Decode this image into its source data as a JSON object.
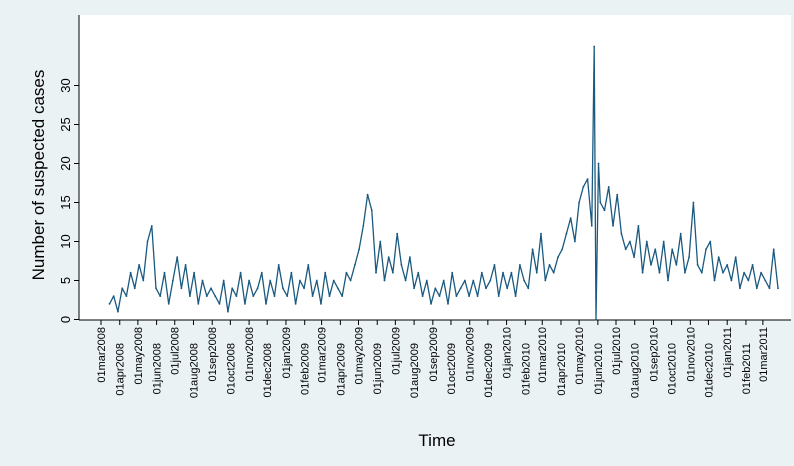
{
  "chart_data": {
    "type": "line",
    "title": "",
    "xlabel": "Time",
    "ylabel": "Number of suspected cases",
    "ylim": [
      0,
      35
    ],
    "xlim": [
      "2008-03-01",
      "2011-03-31"
    ],
    "yticks": [
      0,
      5,
      10,
      15,
      20,
      25,
      30
    ],
    "xtick_labels": [
      "01mar2008",
      "01apr2008",
      "01may2008",
      "01jun2008",
      "01jul2008",
      "01aug2008",
      "01sep2008",
      "01oct2008",
      "01nov2008",
      "01dec2008",
      "01jan2009",
      "01feb2009",
      "01mar2009",
      "01apr2009",
      "01may2009",
      "01jun2009",
      "01jul2009",
      "01aug2009",
      "01sep2009",
      "01oct2009",
      "01nov2009",
      "01dec2009",
      "01jan2010",
      "01feb2010",
      "01mar2010",
      "01apr2010",
      "01may2010",
      "01jun2010",
      "01jul2010",
      "01aug2010",
      "01sep2010",
      "01oct2010",
      "01nov2010",
      "01dec2010",
      "01jan2011",
      "01feb2011",
      "01mar2011"
    ],
    "grid": false,
    "line_color": "#1a5a80",
    "plot_background": "#ffffff",
    "outer_background": "#eaf2f3",
    "series": [
      {
        "x": [
          "2008-03-15",
          "2008-03-22",
          "2008-03-29",
          "2008-04-05",
          "2008-04-12",
          "2008-04-19",
          "2008-04-26",
          "2008-05-03",
          "2008-05-10",
          "2008-05-17",
          "2008-05-24",
          "2008-05-31",
          "2008-06-07",
          "2008-06-14",
          "2008-06-21",
          "2008-06-28",
          "2008-07-05",
          "2008-07-12",
          "2008-07-19",
          "2008-07-26",
          "2008-08-02",
          "2008-08-09",
          "2008-08-16",
          "2008-08-23",
          "2008-08-30",
          "2008-09-06",
          "2008-09-13",
          "2008-09-20",
          "2008-09-27",
          "2008-10-04",
          "2008-10-11",
          "2008-10-18",
          "2008-10-25",
          "2008-11-01",
          "2008-11-08",
          "2008-11-15",
          "2008-11-22",
          "2008-11-29",
          "2008-12-06",
          "2008-12-13",
          "2008-12-20",
          "2008-12-27",
          "2009-01-03",
          "2009-01-10",
          "2009-01-17",
          "2009-01-24",
          "2009-01-31",
          "2009-02-07",
          "2009-02-14",
          "2009-02-21",
          "2009-02-28",
          "2009-03-07",
          "2009-03-14",
          "2009-03-21",
          "2009-03-28",
          "2009-04-04",
          "2009-04-11",
          "2009-04-18",
          "2009-04-25",
          "2009-05-02",
          "2009-05-09",
          "2009-05-16",
          "2009-05-23",
          "2009-05-30",
          "2009-06-06",
          "2009-06-13",
          "2009-06-20",
          "2009-06-27",
          "2009-07-04",
          "2009-07-11",
          "2009-07-18",
          "2009-07-25",
          "2009-08-01",
          "2009-08-08",
          "2009-08-15",
          "2009-08-22",
          "2009-08-29",
          "2009-09-05",
          "2009-09-12",
          "2009-09-19",
          "2009-09-26",
          "2009-10-03",
          "2009-10-10",
          "2009-10-17",
          "2009-10-24",
          "2009-10-31",
          "2009-11-07",
          "2009-11-14",
          "2009-11-21",
          "2009-11-28",
          "2009-12-05",
          "2009-12-12",
          "2009-12-19",
          "2009-12-26",
          "2010-01-02",
          "2010-01-09",
          "2010-01-16",
          "2010-01-23",
          "2010-01-30",
          "2010-02-06",
          "2010-02-13",
          "2010-02-20",
          "2010-02-27",
          "2010-03-06",
          "2010-03-13",
          "2010-03-20",
          "2010-03-27",
          "2010-04-03",
          "2010-04-10",
          "2010-04-17",
          "2010-04-24",
          "2010-05-01",
          "2010-05-08",
          "2010-05-15",
          "2010-05-22",
          "2010-05-26",
          "2010-05-29",
          "2010-06-02",
          "2010-06-05",
          "2010-06-12",
          "2010-06-19",
          "2010-06-26",
          "2010-07-03",
          "2010-07-10",
          "2010-07-17",
          "2010-07-24",
          "2010-07-31",
          "2010-08-07",
          "2010-08-14",
          "2010-08-21",
          "2010-08-28",
          "2010-09-04",
          "2010-09-11",
          "2010-09-18",
          "2010-09-25",
          "2010-10-02",
          "2010-10-09",
          "2010-10-16",
          "2010-10-23",
          "2010-10-30",
          "2010-11-06",
          "2010-11-13",
          "2010-11-20",
          "2010-11-27",
          "2010-12-04",
          "2010-12-11",
          "2010-12-18",
          "2010-12-25",
          "2011-01-01",
          "2011-01-08",
          "2011-01-15",
          "2011-01-22",
          "2011-01-29",
          "2011-02-05",
          "2011-02-12",
          "2011-02-19",
          "2011-02-26",
          "2011-03-05",
          "2011-03-12",
          "2011-03-19",
          "2011-03-26"
        ],
        "y": [
          2,
          3,
          1,
          4,
          3,
          6,
          4,
          7,
          5,
          10,
          12,
          4,
          3,
          6,
          2,
          5,
          8,
          4,
          7,
          3,
          6,
          2,
          5,
          3,
          4,
          3,
          2,
          5,
          1,
          4,
          3,
          6,
          2,
          5,
          3,
          4,
          6,
          2,
          5,
          3,
          7,
          4,
          3,
          6,
          2,
          5,
          4,
          7,
          3,
          5,
          2,
          6,
          3,
          5,
          4,
          3,
          6,
          5,
          7,
          9,
          12,
          16,
          14,
          6,
          10,
          5,
          8,
          6,
          11,
          7,
          5,
          8,
          4,
          6,
          3,
          5,
          2,
          4,
          3,
          5,
          2,
          6,
          3,
          4,
          5,
          3,
          5,
          3,
          6,
          4,
          5,
          7,
          3,
          6,
          4,
          6,
          3,
          7,
          5,
          4,
          9,
          6,
          11,
          5,
          7,
          6,
          8,
          9,
          11,
          13,
          10,
          15,
          17,
          18,
          12,
          35,
          0,
          20,
          15,
          14,
          17,
          12,
          16,
          11,
          9,
          10,
          8,
          12,
          6,
          10,
          7,
          9,
          6,
          10,
          5,
          9,
          7,
          11,
          6,
          8,
          15,
          7,
          6,
          9,
          10,
          5,
          8,
          6,
          7,
          5,
          8,
          4,
          6,
          5,
          7,
          4,
          6,
          5,
          4,
          9,
          4
        ]
      }
    ]
  }
}
